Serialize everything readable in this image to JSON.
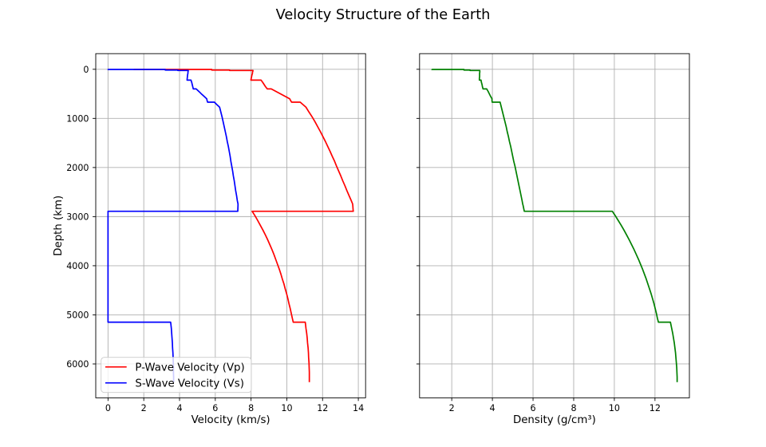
{
  "title": "Velocity Structure of the Earth",
  "colors": {
    "background": "#ffffff",
    "text": "#000000",
    "grid": "#b0b0b0",
    "spine": "#000000",
    "vp_line": "#ff0000",
    "vs_line": "#0000ff",
    "density_line": "#008000",
    "legend_edge": "#cccccc",
    "legend_face": "#ffffff"
  },
  "legend": {
    "position": "lower left",
    "face_alpha": 0.8,
    "entries": [
      {
        "label": "P-Wave Velocity (Vp)",
        "color": "#ff0000"
      },
      {
        "label": "S-Wave Velocity (Vs)",
        "color": "#0000ff"
      }
    ]
  },
  "chart_data": [
    {
      "type": "line",
      "title": "",
      "xlabel": "Velocity (km/s)",
      "ylabel": "Depth (km)",
      "grid": true,
      "y_inverted": true,
      "xlim": [
        -0.686,
        14.406
      ],
      "ylim": [
        6689.6,
        -318.6
      ],
      "x_ticks": [
        0,
        2,
        4,
        6,
        8,
        10,
        12,
        14
      ],
      "y_ticks": [
        0,
        1000,
        2000,
        3000,
        4000,
        5000,
        6000
      ],
      "y_tick_labels_visible": true,
      "depth_km": [
        0,
        3,
        3,
        15,
        15,
        24.4,
        24.4,
        40,
        60,
        80,
        115,
        150,
        185,
        220,
        220,
        265,
        310,
        355,
        400,
        400,
        450,
        500,
        550,
        600,
        635,
        670,
        670,
        721,
        771,
        871,
        971,
        1071,
        1171,
        1271,
        1371,
        1471,
        1571,
        1671,
        1771,
        1871,
        1971,
        2071,
        2171,
        2271,
        2371,
        2471,
        2571,
        2671,
        2741,
        2771,
        2871,
        2891,
        2891,
        2971,
        3071,
        3171,
        3271,
        3371,
        3471,
        3571,
        3671,
        3771,
        3871,
        3971,
        4071,
        4171,
        4271,
        4371,
        4471,
        4571,
        4671,
        4771,
        4871,
        4971,
        5071,
        5149.5,
        5149.5,
        5171,
        5271,
        5371,
        5471,
        5571,
        5671,
        5771,
        5871,
        5971,
        6071,
        6171,
        6271,
        6371
      ],
      "series": [
        {
          "name": "P-Wave Velocity (Vp)",
          "color": "#ff0000",
          "values": [
            1.45,
            1.45,
            5.8,
            5.8,
            6.8,
            6.8,
            8.11,
            8.1,
            8.08,
            8.08,
            8.05,
            8.03,
            8.01,
            7.99,
            8.56,
            8.65,
            8.73,
            8.81,
            8.91,
            9.13,
            9.39,
            9.65,
            9.9,
            10.16,
            10.21,
            10.27,
            10.75,
            10.91,
            11.07,
            11.24,
            11.42,
            11.58,
            11.73,
            11.88,
            12.02,
            12.16,
            12.29,
            12.42,
            12.54,
            12.67,
            12.78,
            12.9,
            13.02,
            13.13,
            13.25,
            13.36,
            13.48,
            13.6,
            13.68,
            13.69,
            13.71,
            13.72,
            8.06,
            8.2,
            8.36,
            8.51,
            8.66,
            8.8,
            8.93,
            9.05,
            9.17,
            9.28,
            9.38,
            9.48,
            9.58,
            9.67,
            9.75,
            9.84,
            9.91,
            9.99,
            10.06,
            10.12,
            10.19,
            10.25,
            10.31,
            10.36,
            11.03,
            11.04,
            11.07,
            11.11,
            11.14,
            11.16,
            11.19,
            11.21,
            11.22,
            11.24,
            11.25,
            11.26,
            11.26,
            11.26
          ]
        },
        {
          "name": "S-Wave Velocity (Vs)",
          "color": "#0000ff",
          "values": [
            0,
            0,
            3.2,
            3.2,
            3.9,
            3.9,
            4.49,
            4.48,
            4.47,
            4.47,
            4.45,
            4.44,
            4.43,
            4.42,
            4.64,
            4.68,
            4.71,
            4.74,
            4.77,
            4.93,
            5.08,
            5.22,
            5.37,
            5.52,
            5.54,
            5.57,
            5.95,
            6.09,
            6.24,
            6.31,
            6.38,
            6.44,
            6.5,
            6.56,
            6.62,
            6.67,
            6.73,
            6.78,
            6.83,
            6.87,
            6.92,
            6.97,
            7.01,
            7.06,
            7.1,
            7.14,
            7.19,
            7.23,
            7.27,
            7.27,
            7.26,
            7.26,
            0,
            0,
            0,
            0,
            0,
            0,
            0,
            0,
            0,
            0,
            0,
            0,
            0,
            0,
            0,
            0,
            0,
            0,
            0,
            0,
            0,
            0,
            0,
            0,
            3.5,
            3.51,
            3.54,
            3.56,
            3.58,
            3.6,
            3.61,
            3.63,
            3.64,
            3.65,
            3.66,
            3.66,
            3.67,
            3.67
          ]
        }
      ]
    },
    {
      "type": "line",
      "title": "",
      "xlabel": "Density (g/cm³)",
      "ylabel": "",
      "grid": true,
      "y_inverted": true,
      "xlim": [
        0.4165,
        13.6935
      ],
      "ylim": [
        6689.6,
        -318.6
      ],
      "x_ticks": [
        2,
        4,
        6,
        8,
        10,
        12
      ],
      "y_ticks": [
        0,
        1000,
        2000,
        3000,
        4000,
        5000,
        6000
      ],
      "y_tick_labels_visible": false,
      "depth_km": [
        0,
        3,
        3,
        15,
        15,
        24.4,
        24.4,
        40,
        60,
        80,
        115,
        150,
        185,
        220,
        220,
        265,
        310,
        355,
        400,
        400,
        450,
        500,
        550,
        600,
        635,
        670,
        670,
        721,
        771,
        871,
        971,
        1071,
        1171,
        1271,
        1371,
        1471,
        1571,
        1671,
        1771,
        1871,
        1971,
        2071,
        2171,
        2271,
        2371,
        2471,
        2571,
        2671,
        2741,
        2771,
        2871,
        2891,
        2891,
        2971,
        3071,
        3171,
        3271,
        3371,
        3471,
        3571,
        3671,
        3771,
        3871,
        3971,
        4071,
        4171,
        4271,
        4371,
        4471,
        4571,
        4671,
        4771,
        4871,
        4971,
        5071,
        5149.5,
        5149.5,
        5171,
        5271,
        5371,
        5471,
        5571,
        5671,
        5771,
        5871,
        5971,
        6071,
        6171,
        6271,
        6371
      ],
      "series": [
        {
          "name": "Density",
          "color": "#008000",
          "values": [
            1.02,
            1.02,
            2.6,
            2.6,
            2.9,
            2.9,
            3.38,
            3.38,
            3.38,
            3.37,
            3.37,
            3.37,
            3.36,
            3.36,
            3.44,
            3.46,
            3.49,
            3.51,
            3.54,
            3.72,
            3.79,
            3.85,
            3.91,
            3.98,
            3.98,
            3.99,
            4.38,
            4.41,
            4.44,
            4.5,
            4.56,
            4.62,
            4.68,
            4.73,
            4.79,
            4.84,
            4.9,
            4.95,
            5,
            5.05,
            5.11,
            5.16,
            5.21,
            5.26,
            5.31,
            5.36,
            5.41,
            5.46,
            5.49,
            5.51,
            5.56,
            5.57,
            9.9,
            10.03,
            10.18,
            10.33,
            10.47,
            10.6,
            10.73,
            10.85,
            10.97,
            11.08,
            11.19,
            11.29,
            11.39,
            11.48,
            11.57,
            11.65,
            11.73,
            11.81,
            11.88,
            11.95,
            12.01,
            12.07,
            12.12,
            12.17,
            12.76,
            12.77,
            12.82,
            12.87,
            12.91,
            12.95,
            12.98,
            13.01,
            13.03,
            13.05,
            13.07,
            13.08,
            13.09,
            13.09
          ]
        }
      ]
    }
  ]
}
